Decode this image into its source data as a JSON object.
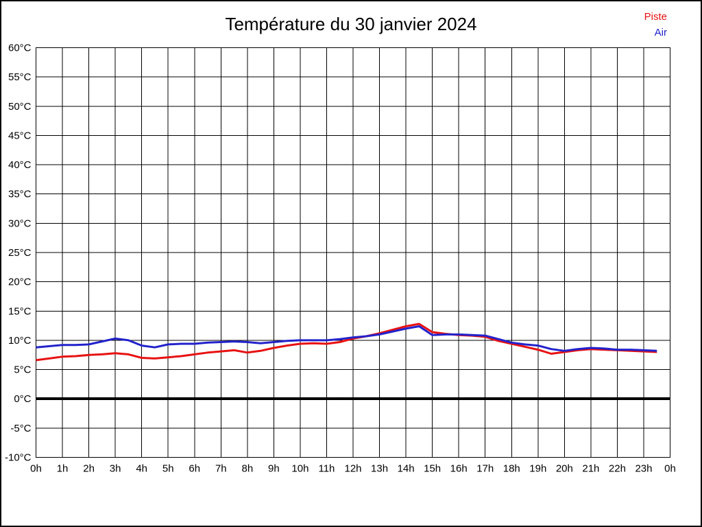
{
  "title": "Température du 30 janvier 2024",
  "legend": {
    "items": [
      {
        "label": "Piste",
        "color": "#e81111"
      },
      {
        "label": "Air",
        "color": "#2222cc"
      }
    ]
  },
  "chart_data": {
    "type": "line",
    "title": "Température du 30 janvier 2024",
    "xlabel": "",
    "ylabel": "",
    "xlim": [
      0,
      24
    ],
    "ylim": [
      -10,
      60
    ],
    "grid": true,
    "zero_line_value": 0,
    "x_tick_labels": [
      "0h",
      "1h",
      "2h",
      "3h",
      "4h",
      "5h",
      "6h",
      "7h",
      "8h",
      "9h",
      "10h",
      "11h",
      "12h",
      "13h",
      "14h",
      "15h",
      "16h",
      "17h",
      "18h",
      "19h",
      "20h",
      "21h",
      "22h",
      "23h",
      "0h"
    ],
    "y_tick_labels": [
      "60°C",
      "55°C",
      "50°C",
      "45°C",
      "40°C",
      "35°C",
      "30°C",
      "25°C",
      "20°C",
      "15°C",
      "10°C",
      "5°C",
      "0°C",
      "-5°C",
      "-10°C"
    ],
    "y_tick_values": [
      60,
      55,
      50,
      45,
      40,
      35,
      30,
      25,
      20,
      15,
      10,
      5,
      0,
      -5,
      -10
    ],
    "x": [
      0,
      0.5,
      1,
      1.5,
      2,
      2.5,
      3,
      3.5,
      4,
      4.5,
      5,
      5.5,
      6,
      6.5,
      7,
      7.5,
      8,
      8.5,
      9,
      9.5,
      10,
      10.5,
      11,
      11.5,
      12,
      12.5,
      13,
      13.5,
      14,
      14.5,
      15,
      15.5,
      16,
      16.5,
      17,
      17.5,
      18,
      18.5,
      19,
      19.5,
      20,
      20.5,
      21,
      21.5,
      22,
      22.5,
      23,
      23.5
    ],
    "series": [
      {
        "name": "Piste",
        "color": "#e81111",
        "values": [
          6.6,
          6.9,
          7.2,
          7.3,
          7.5,
          7.6,
          7.8,
          7.6,
          7.0,
          6.9,
          7.1,
          7.3,
          7.6,
          7.9,
          8.1,
          8.3,
          7.9,
          8.2,
          8.7,
          9.1,
          9.4,
          9.5,
          9.4,
          9.7,
          10.3,
          10.7,
          11.2,
          11.8,
          12.4,
          12.8,
          11.4,
          11.1,
          10.9,
          10.8,
          10.6,
          9.9,
          9.4,
          8.9,
          8.4,
          7.7,
          8.0,
          8.3,
          8.5,
          8.4,
          8.3,
          8.2,
          8.1,
          8.0
        ]
      },
      {
        "name": "Air",
        "color": "#2222cc",
        "values": [
          8.8,
          9.0,
          9.2,
          9.2,
          9.3,
          9.8,
          10.3,
          10.0,
          9.1,
          8.8,
          9.3,
          9.4,
          9.4,
          9.6,
          9.7,
          9.8,
          9.7,
          9.5,
          9.7,
          9.9,
          10.0,
          10.0,
          10.0,
          10.2,
          10.5,
          10.7,
          11.0,
          11.5,
          12.0,
          12.4,
          10.9,
          11.0,
          11.0,
          10.9,
          10.8,
          10.2,
          9.6,
          9.3,
          9.1,
          8.5,
          8.2,
          8.5,
          8.7,
          8.6,
          8.4,
          8.4,
          8.3,
          8.2
        ]
      }
    ],
    "legend_position": "top-right"
  }
}
